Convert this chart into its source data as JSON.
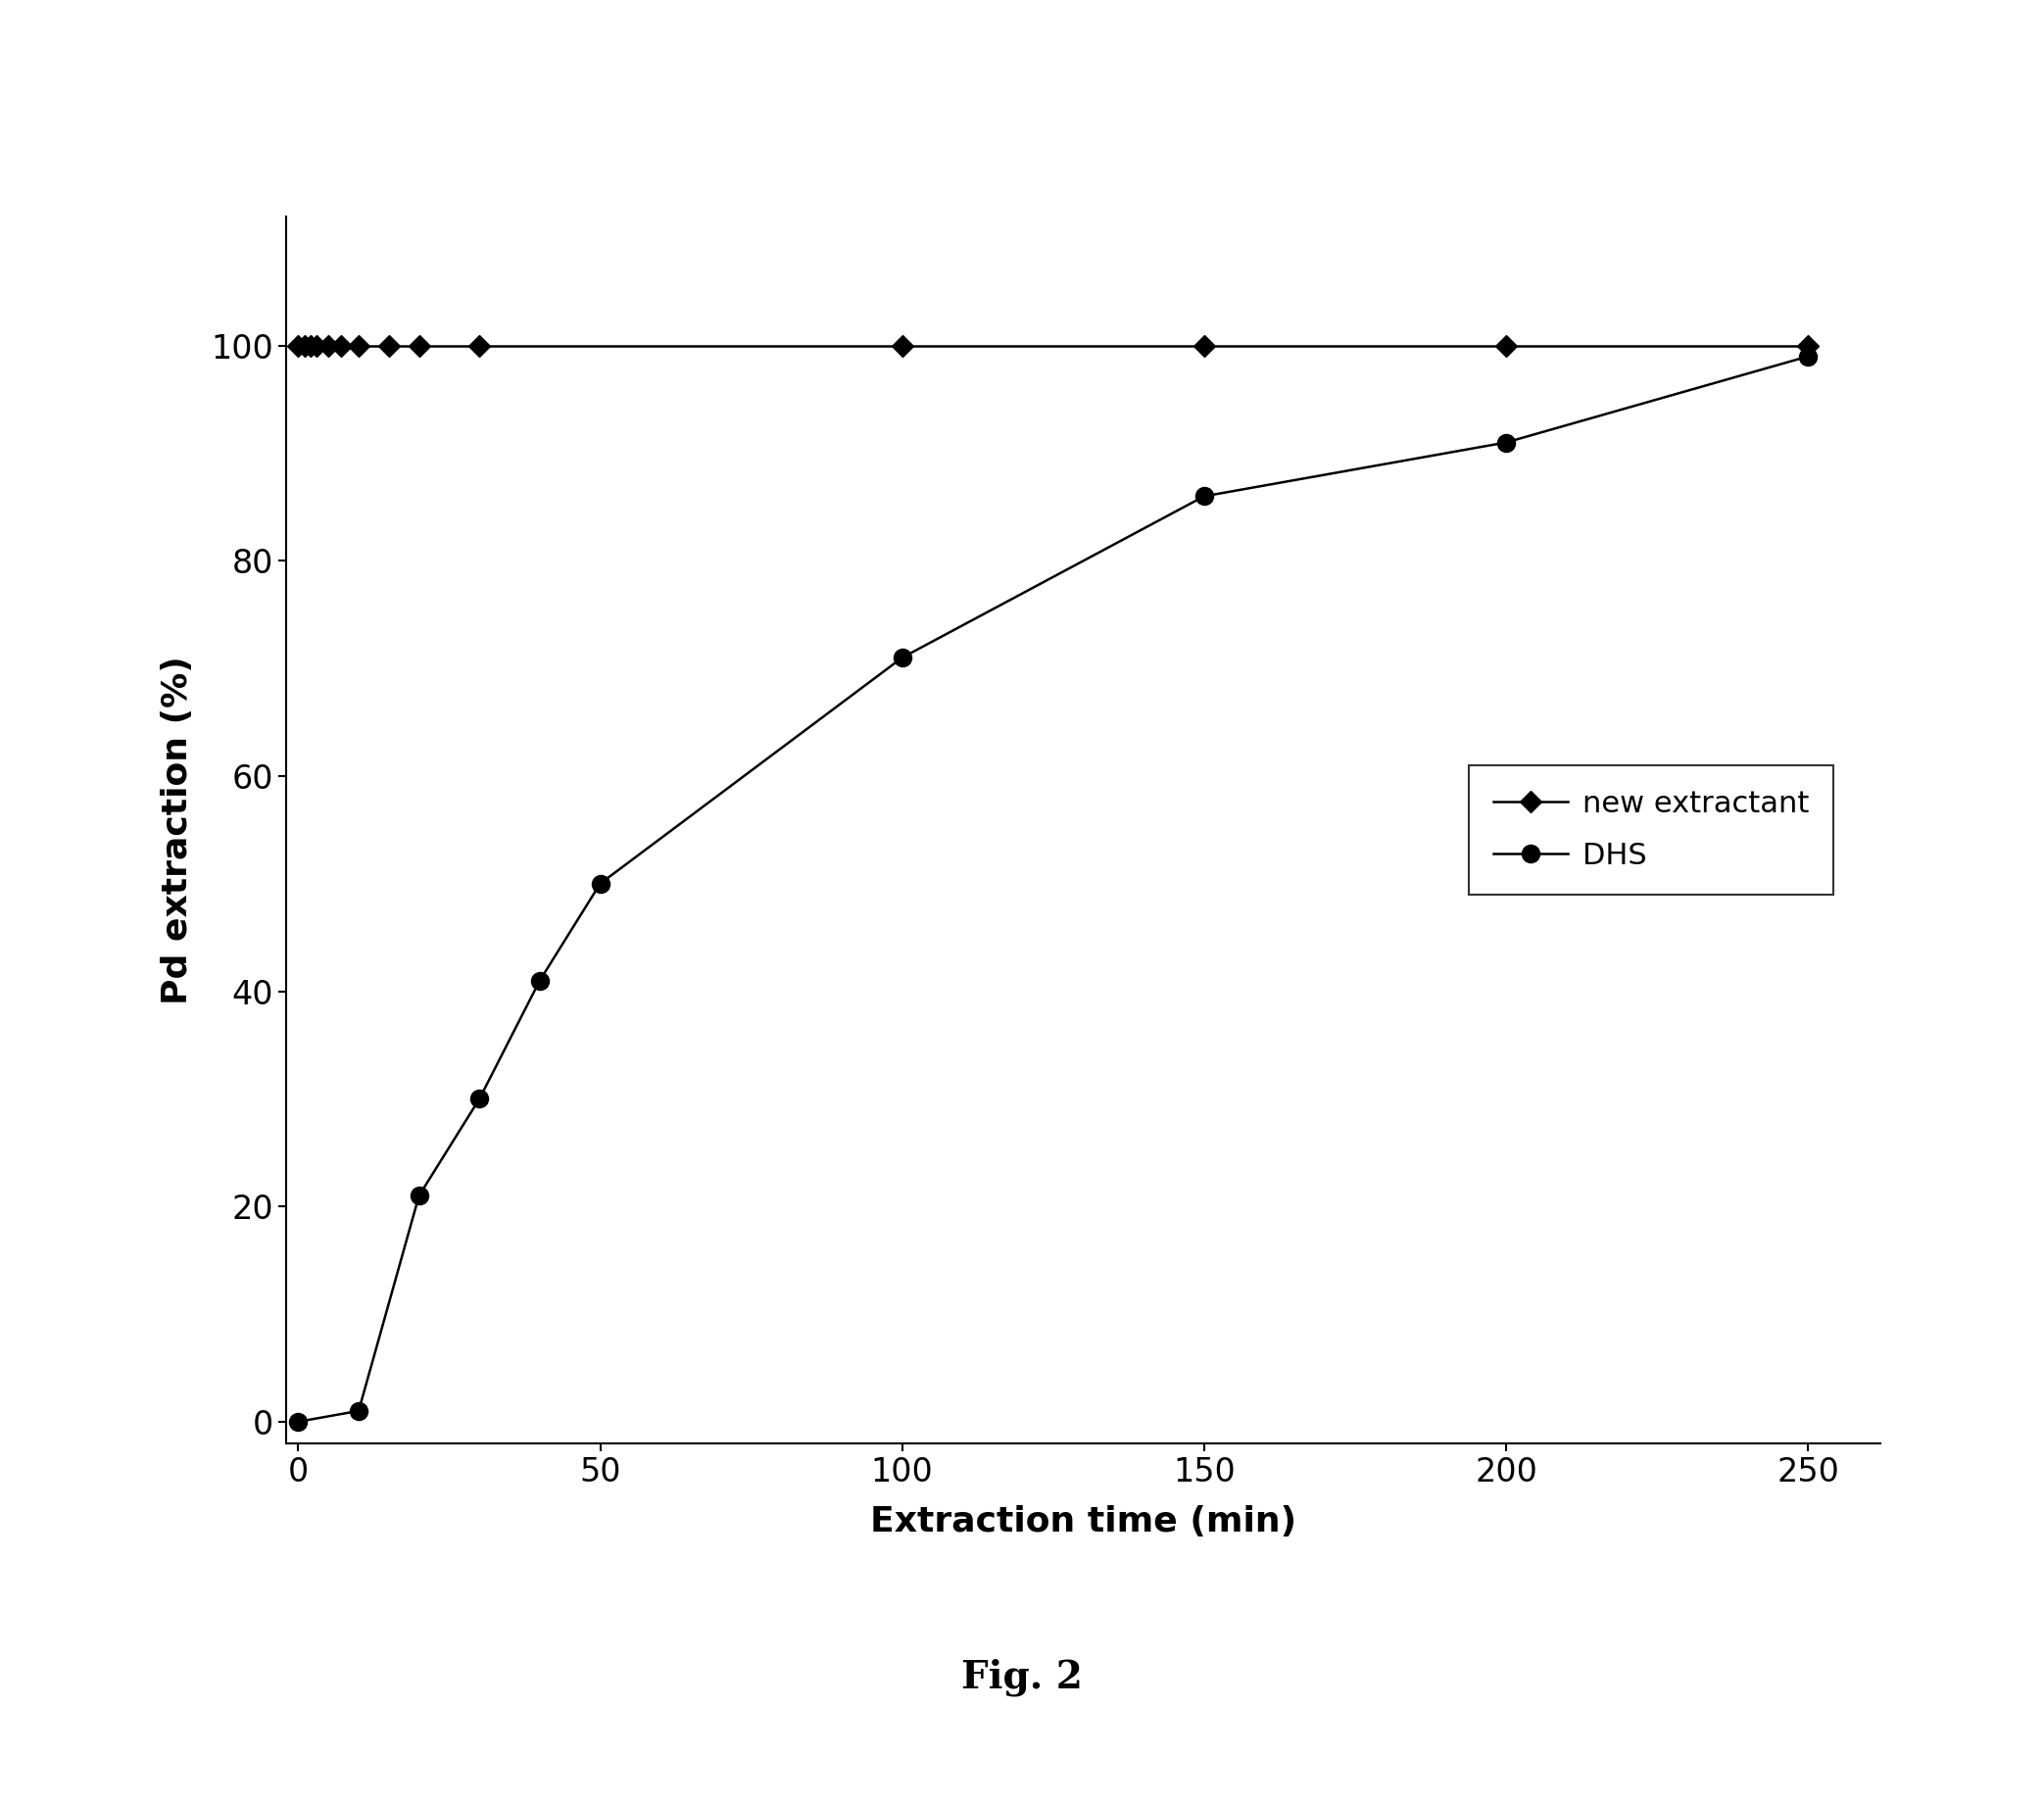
{
  "new_extractant_x": [
    0,
    1,
    2,
    3,
    5,
    7,
    10,
    15,
    20,
    30,
    100,
    150,
    200,
    250
  ],
  "new_extractant_y": [
    100,
    100,
    100,
    100,
    100,
    100,
    100,
    100,
    100,
    100,
    100,
    100,
    100,
    100
  ],
  "dhs_x": [
    0,
    10,
    20,
    30,
    40,
    50,
    100,
    150,
    200,
    250
  ],
  "dhs_y": [
    0,
    1,
    21,
    30,
    41,
    50,
    71,
    86,
    91,
    99
  ],
  "xlabel": "Extraction time (min)",
  "ylabel": "Pd extraction (%)",
  "xlim": [
    -2,
    262
  ],
  "ylim": [
    -2,
    112
  ],
  "xticks": [
    0,
    50,
    100,
    150,
    200,
    250
  ],
  "yticks": [
    0,
    20,
    40,
    60,
    80,
    100
  ],
  "legend_labels": [
    "new extractant",
    "DHS"
  ],
  "figcaption": "Fig. 2",
  "background_color": "#ffffff",
  "line_color": "#000000",
  "marker_diamond": "D",
  "marker_circle": "o",
  "marker_size_diamond": 11,
  "marker_size_circle": 13,
  "linewidth": 1.8,
  "xlabel_fontsize": 26,
  "ylabel_fontsize": 26,
  "tick_fontsize": 24,
  "legend_fontsize": 22,
  "caption_fontsize": 28
}
